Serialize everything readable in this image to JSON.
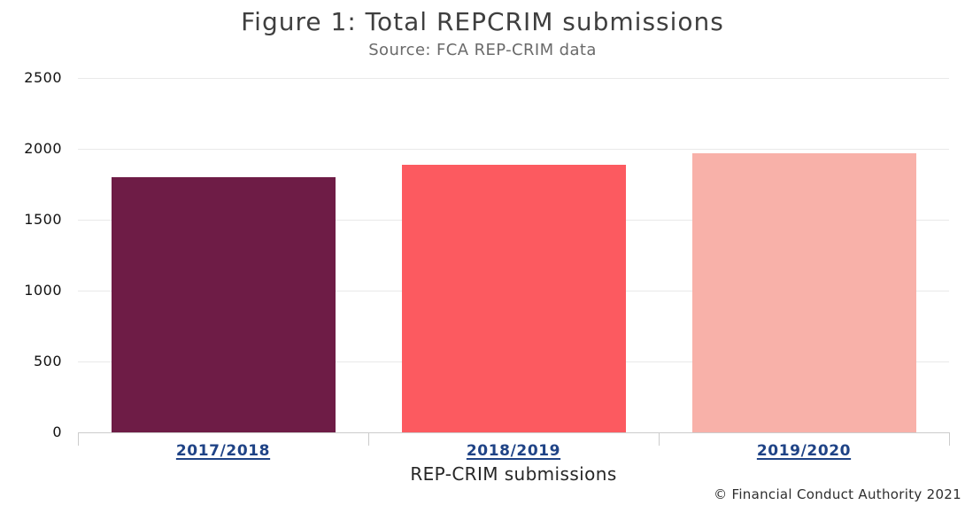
{
  "figure": {
    "title": "Figure 1: Total REPCRIM submissions",
    "subtitle": "Source: FCA REP-CRIM data",
    "footer": "© Financial Conduct Authority 2021"
  },
  "chart_data": {
    "type": "bar",
    "title": "Figure 1: Total REPCRIM submissions",
    "subtitle": "Source: FCA REP-CRIM data",
    "categories": [
      "2017/2018",
      "2018/2019",
      "2019/2020"
    ],
    "values": [
      1800,
      1890,
      1970
    ],
    "xlabel": "REP-CRIM submissions",
    "ylabel": "",
    "ylim": [
      0,
      2500
    ],
    "yticks": [
      0,
      500,
      1000,
      1500,
      2000,
      2500
    ],
    "grid": true,
    "legend": false,
    "bar_colors": [
      "#6e1c46",
      "#fc5a60",
      "#f8b1a9"
    ],
    "category_label_color": "#1f4386",
    "category_labels_underlined": true,
    "footer": "© Financial Conduct Authority 2021"
  },
  "colors": {
    "gridline": "#e9e9e9",
    "axis": "#cccccc",
    "title": "#3f3f3f",
    "subtitle": "#6a6a6a",
    "ytick_label": "#111111",
    "xlabel": "#262626",
    "footer": "#2e2e2e"
  }
}
